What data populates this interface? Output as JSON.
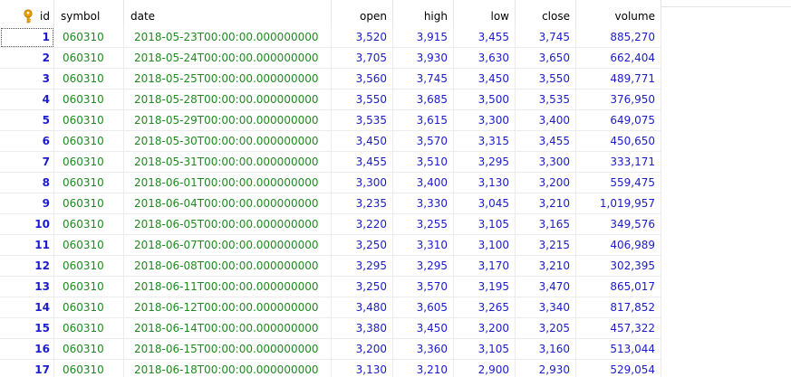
{
  "columns": {
    "id": "id",
    "symbol": "symbol",
    "date": "date",
    "open": "open",
    "high": "high",
    "low": "low",
    "close": "close",
    "volume": "volume"
  },
  "primary_key_icon": "key-icon",
  "colors": {
    "id_text": "#1c1cc8",
    "text_value": "#208a20",
    "number_value": "#1c1cc8",
    "key_icon": "#e8a000"
  },
  "rows": [
    {
      "id": "1",
      "symbol": "060310",
      "date": "2018-05-23T00:00:00.000000000",
      "open": "3,520",
      "high": "3,915",
      "low": "3,455",
      "close": "3,745",
      "volume": "885,270"
    },
    {
      "id": "2",
      "symbol": "060310",
      "date": "2018-05-24T00:00:00.000000000",
      "open": "3,705",
      "high": "3,930",
      "low": "3,630",
      "close": "3,650",
      "volume": "662,404"
    },
    {
      "id": "3",
      "symbol": "060310",
      "date": "2018-05-25T00:00:00.000000000",
      "open": "3,560",
      "high": "3,745",
      "low": "3,450",
      "close": "3,550",
      "volume": "489,771"
    },
    {
      "id": "4",
      "symbol": "060310",
      "date": "2018-05-28T00:00:00.000000000",
      "open": "3,550",
      "high": "3,685",
      "low": "3,500",
      "close": "3,535",
      "volume": "376,950"
    },
    {
      "id": "5",
      "symbol": "060310",
      "date": "2018-05-29T00:00:00.000000000",
      "open": "3,535",
      "high": "3,615",
      "low": "3,300",
      "close": "3,400",
      "volume": "649,075"
    },
    {
      "id": "6",
      "symbol": "060310",
      "date": "2018-05-30T00:00:00.000000000",
      "open": "3,450",
      "high": "3,570",
      "low": "3,315",
      "close": "3,455",
      "volume": "450,650"
    },
    {
      "id": "7",
      "symbol": "060310",
      "date": "2018-05-31T00:00:00.000000000",
      "open": "3,455",
      "high": "3,510",
      "low": "3,295",
      "close": "3,300",
      "volume": "333,171"
    },
    {
      "id": "8",
      "symbol": "060310",
      "date": "2018-06-01T00:00:00.000000000",
      "open": "3,300",
      "high": "3,400",
      "low": "3,130",
      "close": "3,200",
      "volume": "559,475"
    },
    {
      "id": "9",
      "symbol": "060310",
      "date": "2018-06-04T00:00:00.000000000",
      "open": "3,235",
      "high": "3,330",
      "low": "3,045",
      "close": "3,210",
      "volume": "1,019,957"
    },
    {
      "id": "10",
      "symbol": "060310",
      "date": "2018-06-05T00:00:00.000000000",
      "open": "3,220",
      "high": "3,255",
      "low": "3,105",
      "close": "3,165",
      "volume": "349,576"
    },
    {
      "id": "11",
      "symbol": "060310",
      "date": "2018-06-07T00:00:00.000000000",
      "open": "3,250",
      "high": "3,310",
      "low": "3,100",
      "close": "3,215",
      "volume": "406,989"
    },
    {
      "id": "12",
      "symbol": "060310",
      "date": "2018-06-08T00:00:00.000000000",
      "open": "3,295",
      "high": "3,295",
      "low": "3,170",
      "close": "3,210",
      "volume": "302,395"
    },
    {
      "id": "13",
      "symbol": "060310",
      "date": "2018-06-11T00:00:00.000000000",
      "open": "3,250",
      "high": "3,570",
      "low": "3,195",
      "close": "3,470",
      "volume": "865,017"
    },
    {
      "id": "14",
      "symbol": "060310",
      "date": "2018-06-12T00:00:00.000000000",
      "open": "3,480",
      "high": "3,605",
      "low": "3,265",
      "close": "3,340",
      "volume": "817,852"
    },
    {
      "id": "15",
      "symbol": "060310",
      "date": "2018-06-14T00:00:00.000000000",
      "open": "3,380",
      "high": "3,450",
      "low": "3,200",
      "close": "3,205",
      "volume": "457,322"
    },
    {
      "id": "16",
      "symbol": "060310",
      "date": "2018-06-15T00:00:00.000000000",
      "open": "3,200",
      "high": "3,360",
      "low": "3,105",
      "close": "3,160",
      "volume": "513,044"
    },
    {
      "id": "17",
      "symbol": "060310",
      "date": "2018-06-18T00:00:00.000000000",
      "open": "3,130",
      "high": "3,210",
      "low": "2,900",
      "close": "2,930",
      "volume": "529,054"
    }
  ]
}
